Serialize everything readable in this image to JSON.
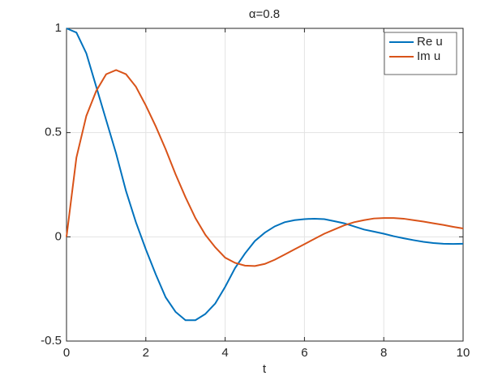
{
  "chart_data": {
    "type": "line",
    "title": "α=0.8",
    "x_label": "t",
    "x": [
      0,
      0.25,
      0.5,
      0.75,
      1,
      1.25,
      1.5,
      1.75,
      2,
      2.25,
      2.5,
      2.75,
      3,
      3.25,
      3.5,
      3.75,
      4,
      4.25,
      4.5,
      4.75,
      5,
      5.25,
      5.5,
      5.75,
      6,
      6.25,
      6.5,
      6.75,
      7,
      7.25,
      7.5,
      7.75,
      8,
      8.25,
      8.5,
      8.75,
      9,
      9.25,
      9.5,
      9.75,
      10
    ],
    "series": [
      {
        "name": "Re u",
        "color": "#0072bd",
        "values": [
          1,
          0.98,
          0.88,
          0.72,
          0.56,
          0.4,
          0.22,
          0.07,
          -0.06,
          -0.18,
          -0.29,
          -0.36,
          -0.4,
          -0.4,
          -0.37,
          -0.32,
          -0.24,
          -0.15,
          -0.08,
          -0.02,
          0.02,
          0.05,
          0.07,
          0.08,
          0.085,
          0.087,
          0.085,
          0.075,
          0.065,
          0.05,
          0.035,
          0.025,
          0.015,
          0.003,
          -0.007,
          -0.016,
          -0.024,
          -0.03,
          -0.033,
          -0.034,
          -0.033
        ]
      },
      {
        "name": "Im u",
        "color": "#d95319",
        "values": [
          0,
          0.38,
          0.58,
          0.7,
          0.78,
          0.8,
          0.78,
          0.72,
          0.63,
          0.53,
          0.42,
          0.3,
          0.19,
          0.09,
          0.01,
          -0.05,
          -0.1,
          -0.125,
          -0.138,
          -0.14,
          -0.13,
          -0.11,
          -0.085,
          -0.06,
          -0.035,
          -0.01,
          0.015,
          0.035,
          0.055,
          0.07,
          0.08,
          0.088,
          0.09,
          0.09,
          0.087,
          0.08,
          0.073,
          0.065,
          0.057,
          0.048,
          0.04
        ]
      }
    ],
    "xlim": [
      0,
      10
    ],
    "xticks": [
      0,
      2,
      4,
      6,
      8,
      10
    ],
    "ylim": [
      -0.5,
      1
    ],
    "yticks": [
      -0.5,
      0,
      0.5,
      1
    ],
    "grid": true,
    "legend": "northeast"
  }
}
